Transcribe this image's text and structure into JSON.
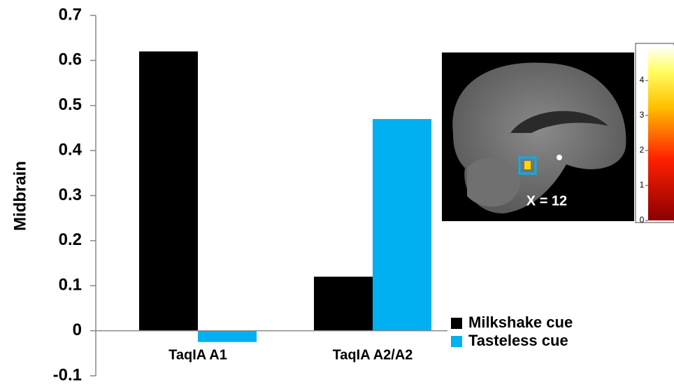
{
  "chart_data": {
    "type": "bar",
    "y_label": "Midbrain",
    "categories": [
      "TaqIA A1",
      "TaqIA A2/A2"
    ],
    "series": [
      {
        "name": "Milkshake cue",
        "color": "#000000",
        "values": [
          0.62,
          0.12
        ]
      },
      {
        "name": "Tasteless cue",
        "color": "#00b0f0",
        "values": [
          -0.025,
          0.47
        ]
      }
    ],
    "ylim": [
      -0.1,
      0.7
    ],
    "yticks": [
      -0.1,
      0,
      0.1,
      0.2,
      0.3,
      0.4,
      0.5,
      0.6,
      0.7
    ],
    "grid": false,
    "legend": "bottom-right"
  },
  "inset": {
    "label": "X = 12",
    "colorbar": {
      "lim": [
        0,
        5
      ],
      "ticks": [
        0,
        1,
        2,
        3,
        4
      ]
    }
  }
}
